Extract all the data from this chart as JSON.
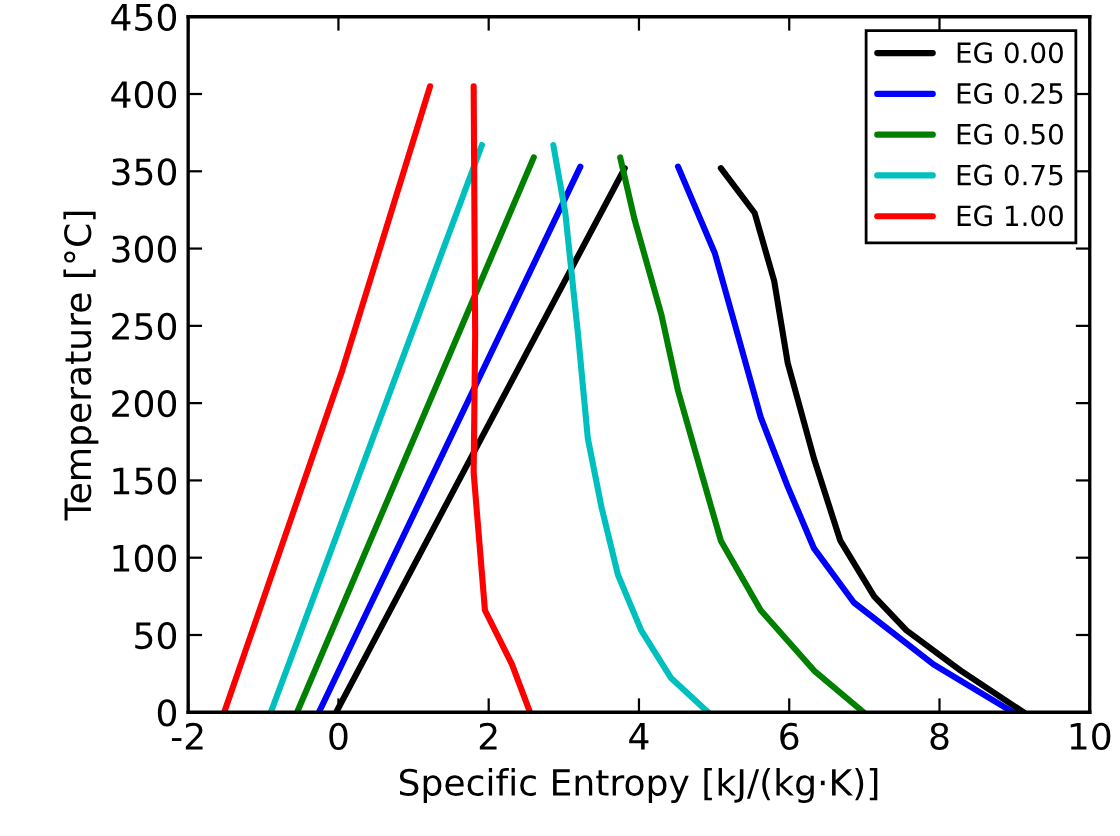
{
  "chart_data": {
    "type": "line",
    "xlabel": "Specific Entropy [kJ/(kg·K)]",
    "ylabel": "Temperature [°C]",
    "xlim": [
      -2,
      10
    ],
    "ylim": [
      0,
      450
    ],
    "xticks": [
      -2,
      0,
      2,
      4,
      6,
      8,
      10
    ],
    "yticks": [
      0,
      50,
      100,
      150,
      200,
      250,
      300,
      350,
      400,
      450
    ],
    "grid": false,
    "legend": "top right",
    "marker": "none",
    "line_style": "solid",
    "series": [
      {
        "name": "EG 0.00",
        "color": "#000000",
        "x": [
          -0.03,
          1.56,
          3.81,
          null,
          5.09,
          5.54,
          5.8,
          5.98,
          6.33,
          6.68,
          7.13,
          7.56,
          8.28,
          9.12
        ],
        "values": [
          0,
          146,
          352,
          null,
          352,
          323,
          279,
          226,
          164,
          111,
          75,
          53,
          27,
          0
        ]
      },
      {
        "name": "EG 0.25",
        "color": "#0000ff",
        "x": [
          -0.26,
          3.22,
          null,
          4.52,
          5.01,
          5.27,
          5.62,
          5.98,
          6.33,
          6.86,
          7.92,
          8.98
        ],
        "values": [
          0,
          353,
          null,
          353,
          297,
          252,
          191,
          146,
          106,
          71,
          31,
          0
        ]
      },
      {
        "name": "EG 0.50",
        "color": "#008000",
        "x": [
          -0.55,
          2.6,
          null,
          3.75,
          3.94,
          4.3,
          4.52,
          4.83,
          5.09,
          5.62,
          6.33,
          6.99
        ],
        "values": [
          0,
          359,
          null,
          359,
          319,
          257,
          208,
          155,
          111,
          66,
          27,
          0
        ]
      },
      {
        "name": "EG 0.75",
        "color": "#00bfbf",
        "x": [
          -0.9,
          1.91,
          null,
          2.86,
          3.02,
          3.19,
          3.32,
          3.5,
          3.72,
          4.03,
          4.43,
          4.92
        ],
        "values": [
          0,
          367,
          null,
          367,
          323,
          244,
          177,
          133,
          89,
          53,
          22,
          0
        ]
      },
      {
        "name": "EG 1.00",
        "color": "#ff0000",
        "x": [
          -1.52,
          0.05,
          1.22,
          null,
          1.8,
          1.82,
          1.8,
          1.95,
          2.31,
          2.55
        ],
        "values": [
          0,
          221,
          405,
          null,
          405,
          244,
          155,
          66,
          31,
          0
        ]
      }
    ]
  }
}
